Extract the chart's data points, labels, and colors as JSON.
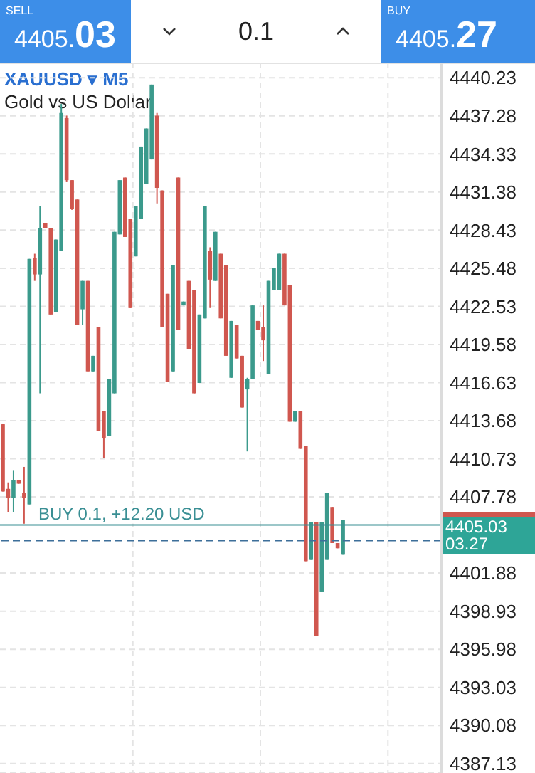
{
  "chart_data": {
    "type": "candlestick",
    "title": "XAUUSD ▾ M5",
    "subtitle": "Gold vs US Dollar",
    "categories": [
      null,
      null,
      null,
      null,
      null,
      null,
      null,
      null,
      null,
      null,
      null,
      null,
      null,
      null,
      null,
      null,
      null,
      null,
      null,
      null,
      null,
      null,
      null,
      null,
      null,
      null,
      null,
      null,
      null,
      null,
      null,
      null,
      null,
      null,
      null,
      null,
      null,
      null,
      null,
      null,
      null,
      null,
      null,
      null,
      null,
      null,
      null,
      null,
      null,
      null,
      null,
      null,
      null,
      null,
      null,
      null,
      null,
      null,
      null,
      null,
      null,
      null,
      null,
      null,
      null,
      null,
      null,
      null,
      null,
      null,
      null,
      null,
      null,
      null,
      null,
      null,
      null,
      null,
      null,
      null,
      null,
      null,
      null
    ],
    "ohlc": [
      [
        4413.4,
        4413.4,
        4408.2,
        4408.2
      ],
      [
        4408.4,
        4408.9,
        4406.6,
        4407.7
      ],
      [
        4407.7,
        4409.8,
        4406.6,
        4409.1
      ],
      [
        4409.1,
        4409.1,
        4408.8,
        4408.8
      ],
      [
        4408.1,
        4410.1,
        4405.7,
        4407.7
      ],
      [
        4407.2,
        4426.2,
        4407.2,
        4426.2
      ],
      [
        4426.3,
        4426.6,
        4424.5,
        4425.0
      ],
      [
        4425.0,
        4430.3,
        4415.8,
        4428.6
      ],
      [
        4429.0,
        4429.0,
        4428.6,
        4428.6
      ],
      [
        4428.6,
        4428.6,
        4421.9,
        4421.9
      ],
      [
        4422.1,
        4427.7,
        4422.1,
        4427.7
      ],
      [
        4426.8,
        4438.2,
        4426.8,
        4437.5
      ],
      [
        4437.1,
        4437.3,
        4432.2,
        4432.3
      ],
      [
        4432.3,
        4432.3,
        4430.0,
        4430.1
      ],
      [
        4430.8,
        4430.8,
        4421.1,
        4421.1
      ],
      [
        4422.3,
        4424.5,
        4421.1,
        4424.5
      ],
      [
        4424.5,
        4424.5,
        4417.5,
        4417.5
      ],
      [
        4417.5,
        4418.7,
        4417.5,
        4418.7
      ],
      [
        4420.9,
        4420.9,
        4412.9,
        4412.9
      ],
      [
        4414.4,
        4414.4,
        4410.8,
        4412.3
      ],
      [
        4412.5,
        4416.9,
        4412.5,
        4416.9
      ],
      [
        4415.8,
        4428.3,
        4415.8,
        4428.3
      ],
      [
        4428.1,
        4432.3,
        4428.1,
        4432.3
      ],
      [
        4432.5,
        4432.5,
        4427.9,
        4427.9
      ],
      [
        4429.3,
        4429.3,
        4422.4,
        4422.4
      ],
      [
        4426.4,
        4430.3,
        4426.4,
        4430.3
      ],
      [
        4429.3,
        4434.9,
        4429.3,
        4434.9
      ],
      [
        4432.0,
        4436.3,
        4432.0,
        4436.3
      ],
      [
        4433.9,
        4439.7,
        4433.9,
        4439.7
      ],
      [
        4437.3,
        4437.5,
        4430.5,
        4431.7
      ],
      [
        4431.5,
        4431.5,
        4420.9,
        4420.9
      ],
      [
        4423.5,
        4423.5,
        4416.7,
        4416.7
      ],
      [
        4417.5,
        4425.7,
        4417.5,
        4425.7
      ],
      [
        4432.5,
        4432.5,
        4420.7,
        4420.7
      ],
      [
        4422.6,
        4422.9,
        4422.6,
        4422.9
      ],
      [
        4424.5,
        4424.5,
        4419.2,
        4419.2
      ],
      [
        4423.8,
        4423.8,
        4415.8,
        4415.8
      ],
      [
        4416.6,
        4421.9,
        4416.6,
        4421.9
      ],
      [
        4421.6,
        4430.3,
        4421.6,
        4430.3
      ],
      [
        4426.8,
        4427.1,
        4422.4,
        4424.6
      ],
      [
        4424.5,
        4428.3,
        4424.5,
        4428.3
      ],
      [
        4426.6,
        4426.6,
        4421.6,
        4421.6
      ],
      [
        4425.7,
        4425.7,
        4418.7,
        4418.7
      ],
      [
        4417.0,
        4421.4,
        4417.0,
        4421.4
      ],
      [
        4421.1,
        4421.1,
        4418.5,
        4418.5
      ],
      [
        4418.7,
        4418.7,
        4414.7,
        4414.7
      ],
      [
        4416.1,
        4417.0,
        4411.3,
        4416.9
      ],
      [
        4416.9,
        4422.6,
        4416.9,
        4422.6
      ],
      [
        4421.4,
        4421.4,
        4420.7,
        4420.7
      ],
      [
        4420.9,
        4422.6,
        4418.3,
        4419.9
      ],
      [
        4417.3,
        4424.5,
        4417.3,
        4424.5
      ],
      [
        4423.8,
        4425.5,
        4423.8,
        4425.5
      ],
      [
        4423.8,
        4426.6,
        4423.8,
        4426.6
      ],
      [
        4426.6,
        4426.6,
        4422.6,
        4422.6
      ],
      [
        4424.2,
        4424.2,
        4413.6,
        4413.6
      ],
      [
        4413.6,
        4414.4,
        4413.6,
        4414.4
      ],
      [
        4414.4,
        4414.4,
        4411.5,
        4411.5
      ],
      [
        4411.7,
        4411.7,
        4402.8,
        4402.8
      ],
      [
        4402.9,
        4405.8,
        4402.9,
        4405.8
      ],
      [
        4405.8,
        4405.8,
        4397.0,
        4397.0
      ],
      [
        4400.4,
        4405.8,
        4400.4,
        4405.8
      ],
      [
        4402.9,
        4408.1,
        4402.9,
        4408.1
      ],
      [
        4407.0,
        4407.0,
        4404.2,
        4404.2
      ],
      [
        4404.2,
        4404.2,
        4403.8,
        4403.8
      ],
      [
        4403.3,
        4406.0,
        4403.3,
        4406.0
      ],
      null,
      null,
      null,
      null,
      null,
      null,
      null,
      null,
      null,
      null,
      null,
      null,
      null,
      null,
      null,
      null,
      null,
      null
    ],
    "colors": [
      "#d0574f",
      "#d0574f",
      "#3b9a8c",
      "#d0574f",
      "#d0574f",
      "#3b9a8c",
      "#d0574f",
      "#3b9a8c",
      "#d0574f",
      "#d0574f",
      "#3b9a8c",
      "#3b9a8c",
      "#d0574f",
      "#d0574f",
      "#d0574f",
      "#3b9a8c",
      "#d0574f",
      "#3b9a8c",
      "#d0574f",
      "#d0574f",
      "#3b9a8c",
      "#3b9a8c",
      "#3b9a8c",
      "#d0574f",
      "#d0574f",
      "#3b9a8c",
      "#3b9a8c",
      "#3b9a8c",
      "#3b9a8c",
      "#d0574f",
      "#d0574f",
      "#d0574f",
      "#3b9a8c",
      "#d0574f",
      "#3b9a8c",
      "#d0574f",
      "#d0574f",
      "#3b9a8c",
      "#3b9a8c",
      "#d0574f",
      "#3b9a8c",
      "#d0574f",
      "#d0574f",
      "#3b9a8c",
      "#d0574f",
      "#d0574f",
      "#3b9a8c",
      "#3b9a8c",
      "#d0574f",
      "#d0574f",
      "#3b9a8c",
      "#3b9a8c",
      "#3b9a8c",
      "#d0574f",
      "#d0574f",
      "#3b9a8c",
      "#d0574f",
      "#d0574f",
      "#3b9a8c",
      "#d0574f",
      "#3b9a8c",
      "#3b9a8c",
      "#d0574f",
      "#d0574f",
      "#3b9a8c",
      null,
      null,
      null,
      null,
      null,
      null,
      null,
      null,
      null,
      null,
      null,
      null,
      null,
      null,
      null,
      null,
      null,
      null
    ],
    "ylim": [
      4386.4,
      4441.4
    ],
    "yticks": [
      4440.23,
      4437.28,
      4434.33,
      4431.38,
      4428.43,
      4425.48,
      4422.53,
      4419.58,
      4416.63,
      4413.68,
      4410.73,
      4407.78,
      4401.88,
      4398.93,
      4395.98,
      4393.03,
      4390.08,
      4387.13
    ],
    "tick_labels": "y",
    "grid": true,
    "ref_lines": [
      {
        "axis": "y",
        "value": 4405.6,
        "label": "BUY 0.1,  +12.20 USD",
        "color": "#3a8f94",
        "line_style": "solid"
      },
      {
        "axis": "y",
        "value": 4404.4,
        "label": null,
        "color": "#3d6f9a",
        "line_style": "dashed"
      }
    ],
    "annotations": [
      "SELL",
      "4405.03",
      "0.1",
      "BUY",
      "4405.27",
      "4405.03",
      "03.27"
    ]
  }
}
